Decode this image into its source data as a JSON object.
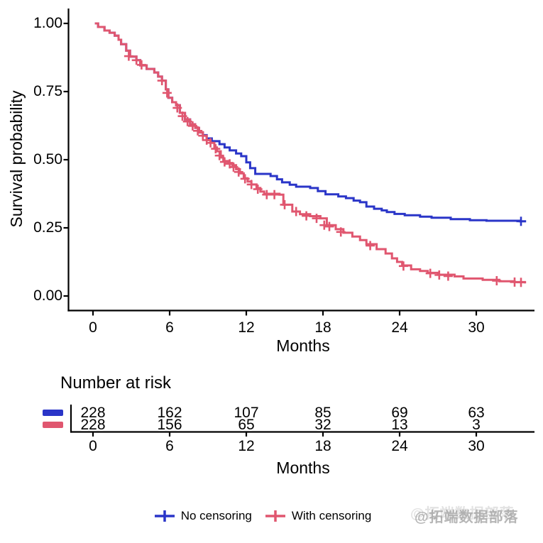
{
  "watermark": "@拓端数据部落",
  "chart_data": {
    "type": "line",
    "subtype": "kaplan-meier-step",
    "title": "",
    "xlabel": "Months",
    "ylabel": "Survival probability",
    "xlim": [
      0,
      34.5
    ],
    "ylim": [
      0,
      1
    ],
    "xticks": [
      0,
      6,
      12,
      18,
      24,
      30
    ],
    "yticks": [
      0.0,
      0.25,
      0.5,
      0.75,
      1.0
    ],
    "grid": "off",
    "series": [
      {
        "name": "No censoring",
        "color": "#2a35c8",
        "end": 33.9,
        "steps": [
          [
            0.15,
            1.0
          ],
          [
            0.4,
            0.987
          ],
          [
            0.9,
            0.974
          ],
          [
            1.3,
            0.966
          ],
          [
            1.7,
            0.955
          ],
          [
            2.0,
            0.94
          ],
          [
            2.2,
            0.924
          ],
          [
            2.6,
            0.9
          ],
          [
            2.9,
            0.878
          ],
          [
            3.4,
            0.865
          ],
          [
            3.7,
            0.846
          ],
          [
            4.2,
            0.833
          ],
          [
            4.8,
            0.82
          ],
          [
            5.1,
            0.805
          ],
          [
            5.4,
            0.79
          ],
          [
            5.7,
            0.758
          ],
          [
            5.9,
            0.727
          ],
          [
            6.2,
            0.711
          ],
          [
            6.5,
            0.7
          ],
          [
            6.8,
            0.672
          ],
          [
            7.2,
            0.648
          ],
          [
            7.6,
            0.63
          ],
          [
            8.0,
            0.617
          ],
          [
            8.3,
            0.6
          ],
          [
            8.6,
            0.59
          ],
          [
            8.9,
            0.578
          ],
          [
            9.3,
            0.568
          ],
          [
            9.9,
            0.557
          ],
          [
            10.3,
            0.545
          ],
          [
            10.7,
            0.534
          ],
          [
            11.2,
            0.523
          ],
          [
            11.6,
            0.513
          ],
          [
            12.0,
            0.49
          ],
          [
            12.3,
            0.469
          ],
          [
            12.7,
            0.448
          ],
          [
            13.9,
            0.44
          ],
          [
            14.4,
            0.428
          ],
          [
            14.8,
            0.417
          ],
          [
            15.4,
            0.408
          ],
          [
            15.9,
            0.401
          ],
          [
            17.0,
            0.396
          ],
          [
            17.6,
            0.385
          ],
          [
            18.2,
            0.373
          ],
          [
            19.2,
            0.365
          ],
          [
            19.8,
            0.359
          ],
          [
            20.4,
            0.35
          ],
          [
            20.9,
            0.344
          ],
          [
            21.4,
            0.328
          ],
          [
            22.0,
            0.32
          ],
          [
            22.6,
            0.314
          ],
          [
            23.0,
            0.308
          ],
          [
            23.6,
            0.301
          ],
          [
            24.4,
            0.296
          ],
          [
            25.6,
            0.291
          ],
          [
            26.5,
            0.287
          ],
          [
            28.0,
            0.282
          ],
          [
            29.5,
            0.278
          ],
          [
            30.8,
            0.276
          ],
          [
            33.4,
            0.274
          ]
        ],
        "censors": [
          [
            33.5,
            0.274
          ]
        ]
      },
      {
        "name": "With censoring",
        "color": "#e0566f",
        "end": 33.9,
        "steps": [
          [
            0.15,
            1.0
          ],
          [
            0.4,
            0.987
          ],
          [
            0.9,
            0.974
          ],
          [
            1.3,
            0.966
          ],
          [
            1.7,
            0.955
          ],
          [
            2.0,
            0.94
          ],
          [
            2.2,
            0.924
          ],
          [
            2.6,
            0.9
          ],
          [
            2.9,
            0.878
          ],
          [
            3.4,
            0.865
          ],
          [
            3.7,
            0.846
          ],
          [
            4.2,
            0.833
          ],
          [
            4.8,
            0.82
          ],
          [
            5.1,
            0.805
          ],
          [
            5.4,
            0.79
          ],
          [
            5.7,
            0.758
          ],
          [
            5.9,
            0.727
          ],
          [
            6.2,
            0.711
          ],
          [
            6.5,
            0.7
          ],
          [
            6.8,
            0.672
          ],
          [
            7.2,
            0.648
          ],
          [
            7.6,
            0.63
          ],
          [
            8.0,
            0.617
          ],
          [
            8.3,
            0.6
          ],
          [
            8.6,
            0.588
          ],
          [
            8.9,
            0.572
          ],
          [
            9.2,
            0.562
          ],
          [
            9.5,
            0.545
          ],
          [
            9.7,
            0.531
          ],
          [
            10.0,
            0.508
          ],
          [
            10.2,
            0.495
          ],
          [
            10.6,
            0.488
          ],
          [
            10.9,
            0.48
          ],
          [
            11.2,
            0.465
          ],
          [
            11.5,
            0.45
          ],
          [
            11.8,
            0.432
          ],
          [
            12.1,
            0.42
          ],
          [
            12.4,
            0.409
          ],
          [
            12.8,
            0.396
          ],
          [
            13.1,
            0.383
          ],
          [
            13.4,
            0.375
          ],
          [
            14.6,
            0.372
          ],
          [
            14.9,
            0.335
          ],
          [
            15.6,
            0.31
          ],
          [
            16.2,
            0.3
          ],
          [
            17.0,
            0.293
          ],
          [
            17.8,
            0.285
          ],
          [
            18.3,
            0.26
          ],
          [
            19.0,
            0.245
          ],
          [
            19.6,
            0.232
          ],
          [
            20.3,
            0.218
          ],
          [
            20.9,
            0.205
          ],
          [
            21.4,
            0.19
          ],
          [
            22.2,
            0.172
          ],
          [
            22.9,
            0.156
          ],
          [
            23.4,
            0.138
          ],
          [
            23.8,
            0.125
          ],
          [
            24.2,
            0.112
          ],
          [
            24.9,
            0.098
          ],
          [
            25.6,
            0.092
          ],
          [
            26.2,
            0.085
          ],
          [
            27.0,
            0.078
          ],
          [
            28.3,
            0.072
          ],
          [
            29.0,
            0.064
          ],
          [
            30.5,
            0.059
          ],
          [
            31.8,
            0.054
          ],
          [
            33.0,
            0.051
          ],
          [
            33.8,
            0.05
          ]
        ],
        "censors": [
          [
            2.8,
            0.88
          ],
          [
            3.4,
            0.865
          ],
          [
            3.8,
            0.848
          ],
          [
            5.4,
            0.79
          ],
          [
            5.8,
            0.745
          ],
          [
            6.6,
            0.69
          ],
          [
            7.0,
            0.66
          ],
          [
            7.4,
            0.64
          ],
          [
            7.8,
            0.624
          ],
          [
            8.2,
            0.606
          ],
          [
            8.6,
            0.588
          ],
          [
            8.9,
            0.572
          ],
          [
            9.2,
            0.562
          ],
          [
            9.6,
            0.54
          ],
          [
            9.9,
            0.515
          ],
          [
            10.3,
            0.492
          ],
          [
            10.7,
            0.485
          ],
          [
            11.0,
            0.473
          ],
          [
            11.4,
            0.455
          ],
          [
            11.9,
            0.43
          ],
          [
            12.4,
            0.409
          ],
          [
            12.9,
            0.392
          ],
          [
            13.6,
            0.372
          ],
          [
            14.2,
            0.372
          ],
          [
            15.0,
            0.335
          ],
          [
            15.9,
            0.31
          ],
          [
            16.7,
            0.294
          ],
          [
            17.5,
            0.285
          ],
          [
            18.1,
            0.26
          ],
          [
            18.5,
            0.255
          ],
          [
            19.4,
            0.235
          ],
          [
            21.7,
            0.185
          ],
          [
            24.3,
            0.11
          ],
          [
            26.4,
            0.083
          ],
          [
            27.1,
            0.077
          ],
          [
            27.8,
            0.073
          ],
          [
            31.6,
            0.056
          ],
          [
            33.0,
            0.051
          ],
          [
            33.5,
            0.05
          ]
        ]
      }
    ],
    "risk_table": {
      "title": "Number at risk",
      "xlabel": "Months",
      "months": [
        0,
        6,
        12,
        18,
        24,
        30
      ],
      "rows": [
        {
          "name": "No censoring",
          "color": "#2a35c8",
          "values": [
            228,
            162,
            107,
            85,
            69,
            63
          ]
        },
        {
          "name": "With censoring",
          "color": "#e0566f",
          "values": [
            228,
            156,
            65,
            32,
            13,
            3
          ]
        }
      ]
    },
    "legend": {
      "position": "bottom",
      "entries": [
        {
          "label": "No censoring",
          "color": "#2a35c8"
        },
        {
          "label": "With censoring",
          "color": "#e0566f"
        }
      ]
    }
  }
}
